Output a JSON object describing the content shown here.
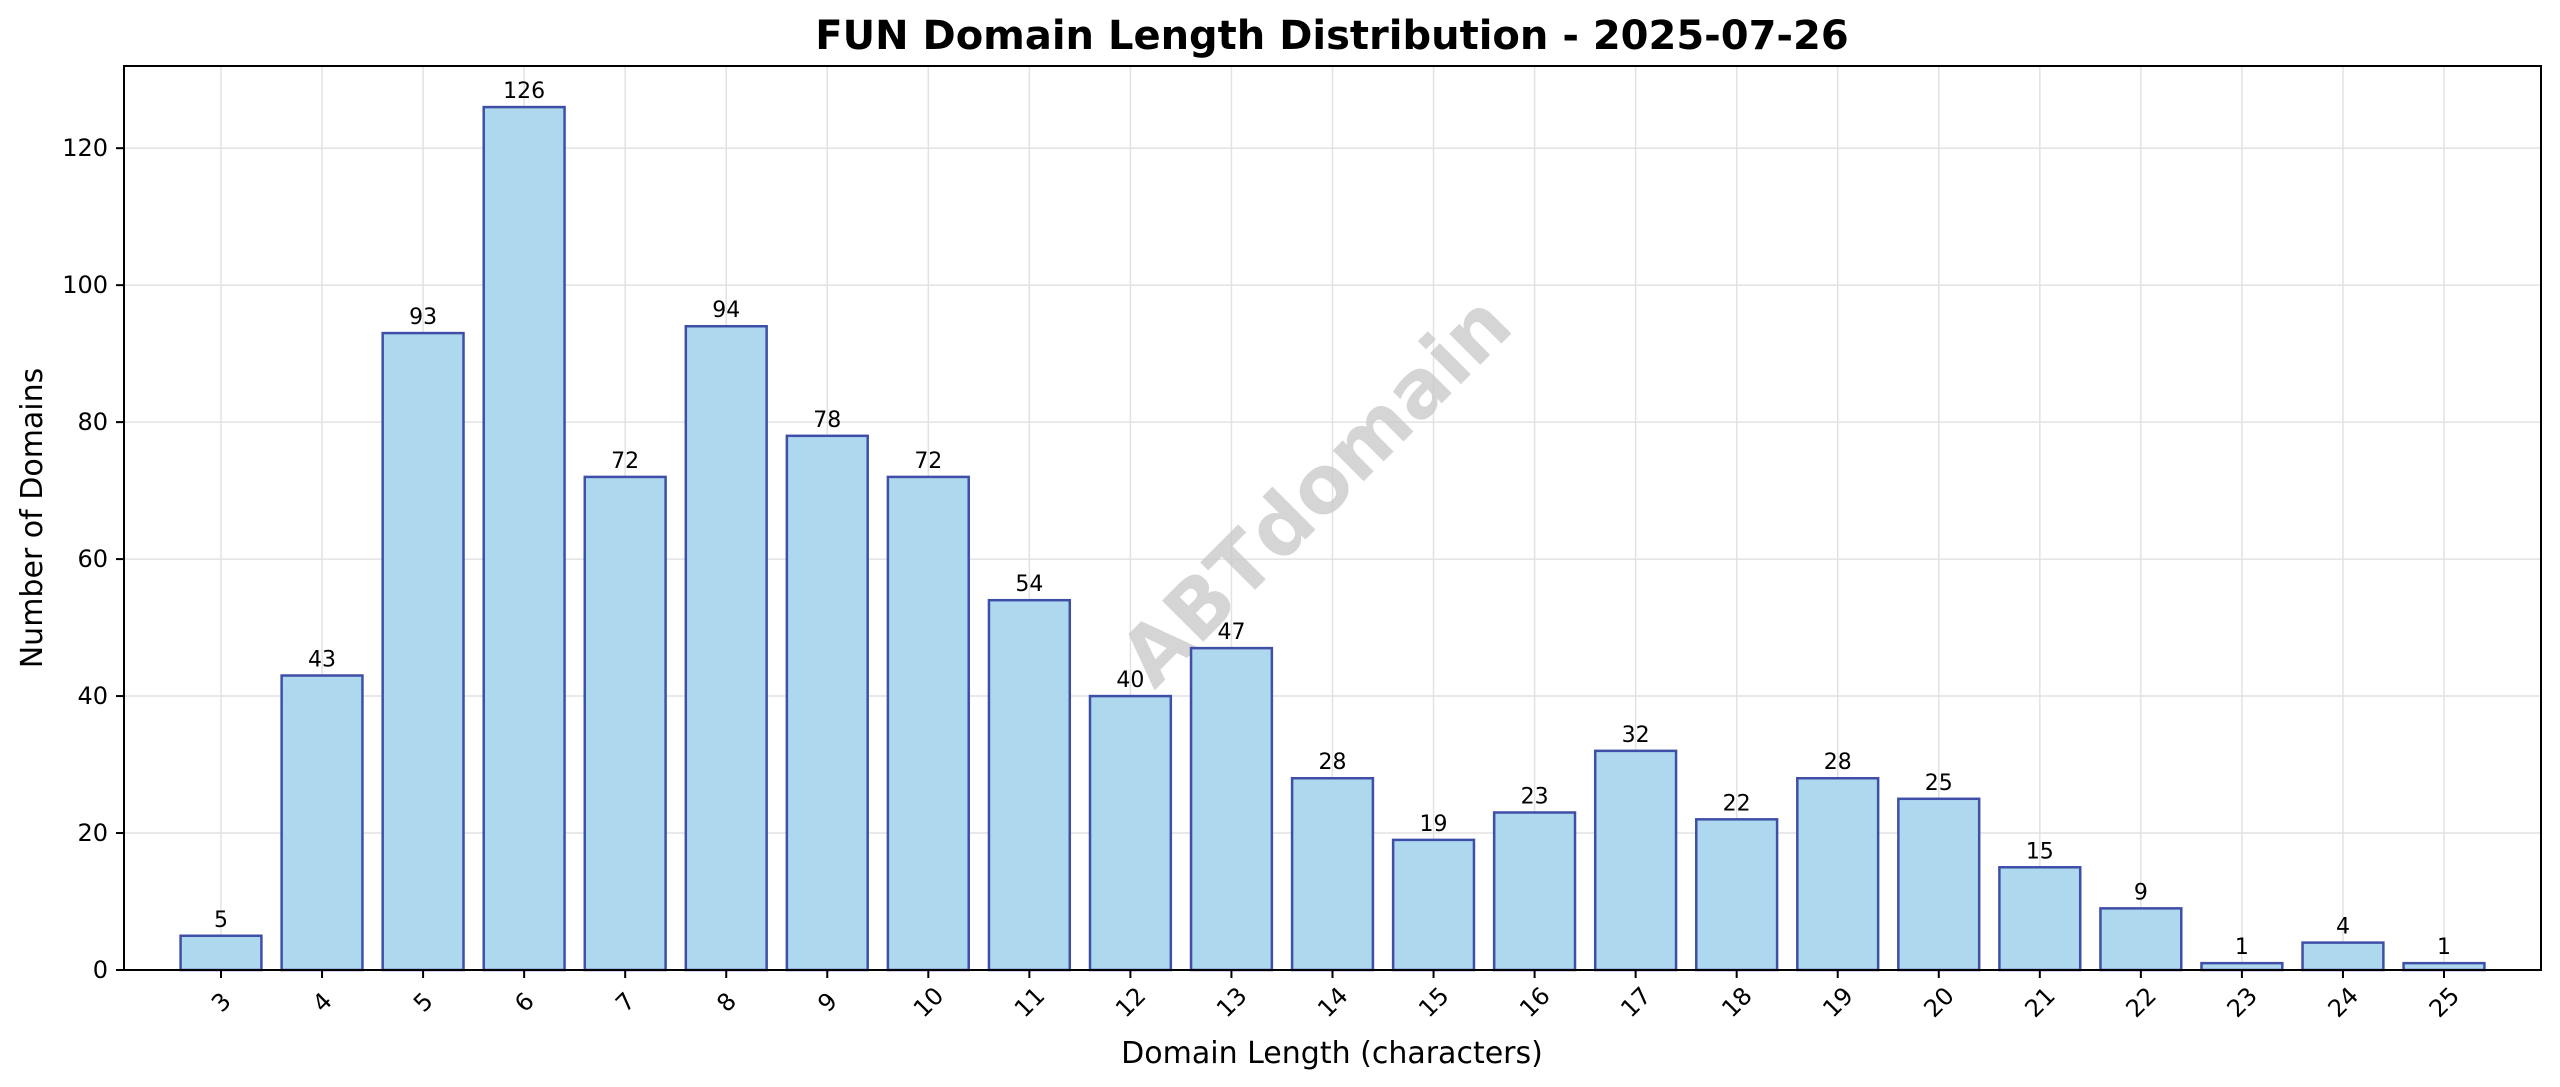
{
  "chart_data": {
    "type": "bar",
    "title": "FUN Domain Length Distribution - 2025-07-26",
    "xlabel": "Domain Length (characters)",
    "ylabel": "Number of Domains",
    "categories": [
      "3",
      "4",
      "5",
      "6",
      "7",
      "8",
      "9",
      "10",
      "11",
      "12",
      "13",
      "14",
      "15",
      "16",
      "17",
      "18",
      "19",
      "20",
      "21",
      "22",
      "23",
      "24",
      "25"
    ],
    "values": [
      5,
      43,
      93,
      126,
      72,
      94,
      78,
      72,
      54,
      40,
      47,
      28,
      19,
      23,
      32,
      22,
      28,
      25,
      15,
      9,
      1,
      4,
      1
    ],
    "ylim": [
      0,
      132
    ],
    "yticks": [
      0,
      20,
      40,
      60,
      80,
      100,
      120
    ],
    "grid": true,
    "xtick_rotation": -45,
    "bar_color": "#add8ee",
    "bar_edge_color": "#3f4fa8",
    "grid_color": "#e2e2e2",
    "watermark": "ABTdomain"
  }
}
